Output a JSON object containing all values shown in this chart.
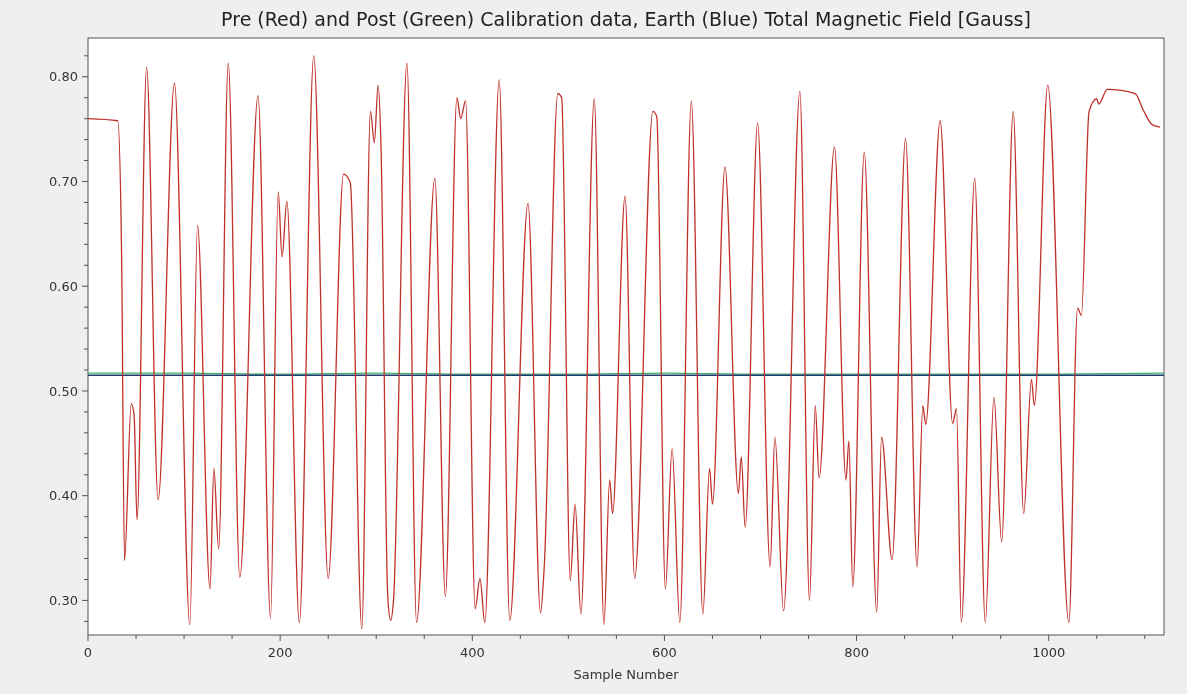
{
  "chart_data": {
    "type": "line",
    "title": "Pre (Red) and Post (Green) Calibration data, Earth (Blue) Total Magnetic Field [Gauss]",
    "xlabel": "Sample Number",
    "xlim": [
      0,
      1120
    ],
    "ylim": [
      0.267,
      0.837
    ],
    "xticks": [
      0,
      {
        "value": 50,
        "label": null
      },
      {
        "value": 100,
        "label": null
      },
      {
        "value": 150,
        "label": null
      },
      200,
      {
        "value": 250,
        "label": null
      },
      {
        "value": 300,
        "label": null
      },
      {
        "value": 350,
        "label": null
      },
      400,
      {
        "value": 450,
        "label": null
      },
      {
        "value": 500,
        "label": null
      },
      {
        "value": 550,
        "label": null
      },
      600,
      {
        "value": 650,
        "label": null
      },
      {
        "value": 700,
        "label": null
      },
      {
        "value": 750,
        "label": null
      },
      800,
      {
        "value": 850,
        "label": null
      },
      {
        "value": 900,
        "label": null
      },
      {
        "value": 950,
        "label": null
      },
      1000,
      {
        "value": 1050,
        "label": null
      },
      {
        "value": 1100,
        "label": null
      }
    ],
    "yticks": [
      {
        "value": 0.28,
        "label": null
      },
      {
        "value": 0.3,
        "label": "0.30"
      },
      {
        "value": 0.32,
        "label": null
      },
      {
        "value": 0.34,
        "label": null
      },
      {
        "value": 0.36,
        "label": null
      },
      {
        "value": 0.38,
        "label": null
      },
      {
        "value": 0.4,
        "label": "0.40"
      },
      {
        "value": 0.42,
        "label": null
      },
      {
        "value": 0.44,
        "label": null
      },
      {
        "value": 0.46,
        "label": null
      },
      {
        "value": 0.48,
        "label": null
      },
      {
        "value": 0.5,
        "label": "0.50"
      },
      {
        "value": 0.52,
        "label": null
      },
      {
        "value": 0.54,
        "label": null
      },
      {
        "value": 0.56,
        "label": null
      },
      {
        "value": 0.58,
        "label": null
      },
      {
        "value": 0.6,
        "label": "0.60"
      },
      {
        "value": 0.62,
        "label": null
      },
      {
        "value": 0.64,
        "label": null
      },
      {
        "value": 0.66,
        "label": null
      },
      {
        "value": 0.68,
        "label": null
      },
      {
        "value": 0.7,
        "label": "0.70"
      },
      {
        "value": 0.72,
        "label": null
      },
      {
        "value": 0.74,
        "label": null
      },
      {
        "value": 0.76,
        "label": null
      },
      {
        "value": 0.78,
        "label": null
      },
      {
        "value": 0.8,
        "label": "0.80"
      },
      {
        "value": 0.82,
        "label": null
      }
    ],
    "grid": false,
    "marker": "none",
    "line_style": "solid",
    "series": [
      {
        "color": "#3cb371",
        "x": [
          0,
          100,
          200,
          300,
          400,
          500,
          600,
          700,
          800,
          900,
          1000,
          1120
        ],
        "values": [
          0.517,
          0.517,
          0.516,
          0.517,
          0.516,
          0.516,
          0.517,
          0.516,
          0.516,
          0.516,
          0.516,
          0.517
        ]
      },
      {
        "color": "#1f3a6e",
        "x": [
          0,
          1120
        ],
        "values": [
          0.515,
          0.515
        ]
      },
      {
        "color": "#c0302a",
        "x": [
          0,
          31,
          35,
          38,
          45,
          48,
          51,
          61,
          73,
          90,
          106,
          114,
          127,
          131,
          136,
          146,
          158,
          177,
          190,
          198,
          202,
          207,
          220,
          235,
          250,
          266,
          273,
          285,
          294,
          298,
          302,
          305,
          312,
          315,
          318,
          332,
          342,
          361,
          372,
          384,
          388,
          393,
          403,
          408,
          413,
          428,
          439,
          458,
          471,
          475,
          489,
          493,
          502,
          507,
          513,
          527,
          537,
          543,
          546,
          559,
          569,
          588,
          592,
          601,
          608,
          616,
          628,
          640,
          647,
          650,
          663,
          677,
          680,
          684,
          697,
          710,
          715,
          724,
          741,
          751,
          757,
          761,
          777,
          789,
          792,
          796,
          808,
          821,
          826,
          837,
          851,
          863,
          869,
          872,
          887,
          900,
          904,
          909,
          923,
          934,
          943,
          951,
          963,
          974,
          982,
          985,
          999,
          1021,
          1030,
          1034,
          1042,
          1050,
          1052,
          1061,
          1090,
          1098,
          1108,
          1116
        ],
        "values": [
          0.76,
          0.758,
          0.628,
          0.338,
          0.488,
          0.477,
          0.377,
          0.809,
          0.396,
          0.794,
          0.277,
          0.658,
          0.311,
          0.426,
          0.349,
          0.813,
          0.322,
          0.782,
          0.283,
          0.69,
          0.628,
          0.681,
          0.279,
          0.82,
          0.321,
          0.707,
          0.699,
          0.273,
          0.767,
          0.737,
          0.792,
          0.733,
          0.304,
          0.281,
          0.3,
          0.813,
          0.279,
          0.703,
          0.304,
          0.78,
          0.76,
          0.777,
          0.292,
          0.321,
          0.279,
          0.797,
          0.281,
          0.679,
          0.288,
          0.334,
          0.784,
          0.78,
          0.319,
          0.392,
          0.287,
          0.779,
          0.277,
          0.415,
          0.383,
          0.686,
          0.321,
          0.767,
          0.762,
          0.311,
          0.445,
          0.279,
          0.777,
          0.287,
          0.426,
          0.392,
          0.714,
          0.402,
          0.437,
          0.37,
          0.756,
          0.332,
          0.456,
          0.29,
          0.786,
          0.3,
          0.486,
          0.417,
          0.733,
          0.415,
          0.452,
          0.313,
          0.728,
          0.289,
          0.456,
          0.339,
          0.741,
          0.332,
          0.486,
          0.468,
          0.758,
          0.469,
          0.483,
          0.279,
          0.703,
          0.279,
          0.494,
          0.356,
          0.767,
          0.383,
          0.511,
          0.486,
          0.792,
          0.279,
          0.579,
          0.572,
          0.767,
          0.779,
          0.774,
          0.788,
          0.784,
          0.769,
          0.754,
          0.752
        ]
      }
    ]
  }
}
